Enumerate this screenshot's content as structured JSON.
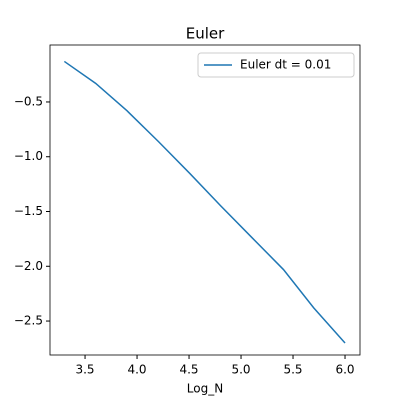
{
  "chart_data": {
    "type": "line",
    "title": "Euler",
    "xlabel": "Log_N",
    "x": [
      3.301,
      3.602,
      3.903,
      4.204,
      4.505,
      4.806,
      5.107,
      5.408,
      5.699,
      6.0
    ],
    "series": [
      {
        "name": "Euler dt = 0.01",
        "color": "#1f77b4",
        "values": [
          -0.13,
          -0.33,
          -0.58,
          -0.86,
          -1.15,
          -1.45,
          -1.74,
          -2.03,
          -2.38,
          -2.7
        ]
      }
    ],
    "xlim": [
      3.163,
      6.144
    ],
    "ylim": [
      -2.81,
      0.02
    ],
    "xticks": [
      {
        "value": 3.5,
        "label": "3.5"
      },
      {
        "value": 4.0,
        "label": "4.0"
      },
      {
        "value": 4.5,
        "label": "4.5"
      },
      {
        "value": 5.0,
        "label": "5.0"
      },
      {
        "value": 5.5,
        "label": "5.5"
      },
      {
        "value": 6.0,
        "label": "6.0"
      }
    ],
    "yticks": [
      {
        "value": -0.5,
        "label": "−0.5"
      },
      {
        "value": -1.0,
        "label": "−1.0"
      },
      {
        "value": -1.5,
        "label": "−1.5"
      },
      {
        "value": -2.0,
        "label": "−2.0"
      },
      {
        "value": -2.5,
        "label": "−2.5"
      }
    ],
    "legend": "upper right",
    "grid": false
  }
}
